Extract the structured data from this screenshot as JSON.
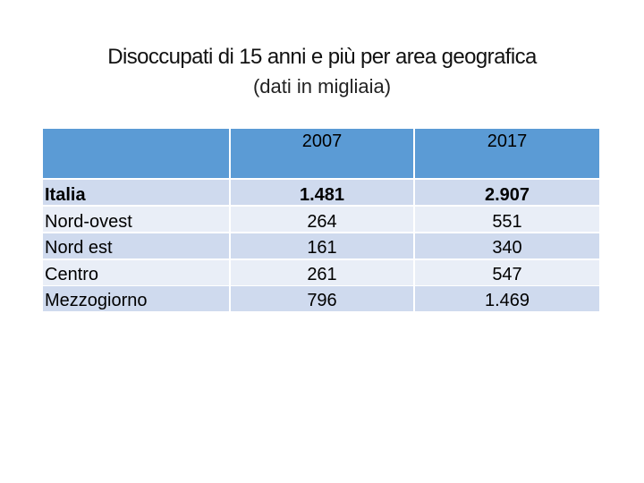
{
  "title": "Disoccupati di 15 anni e più per area geografica",
  "subtitle": "(dati in migliaia)",
  "table": {
    "headers": [
      "",
      "2007",
      "2017"
    ],
    "rows": [
      {
        "area": "Italia",
        "y2007": "1.481",
        "y2017": "2.907"
      },
      {
        "area": "Nord-ovest",
        "y2007": "264",
        "y2017": "551"
      },
      {
        "area": "Nord est",
        "y2007": "161",
        "y2017": "340"
      },
      {
        "area": "Centro",
        "y2007": "261",
        "y2017": "547"
      },
      {
        "area": "Mezzogiorno",
        "y2007": "796",
        "y2017": "1.469"
      }
    ]
  },
  "colors": {
    "header": "#5b9bd5",
    "stripe_dark": "#cfdaee",
    "stripe_light": "#e9eef7"
  }
}
